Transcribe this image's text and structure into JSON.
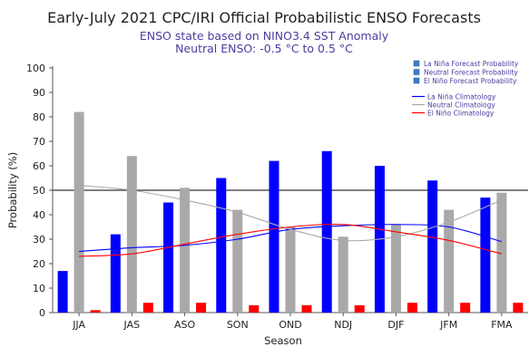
{
  "title": "Early-July 2021 CPC/IRI Official Probabilistic ENSO Forecasts",
  "subtitle_1": "ENSO state based on NINO3.4 SST Anomaly",
  "subtitle_2": "Neutral ENSO: -0.5 °C to 0.5 °C",
  "chart_data": {
    "type": "bar",
    "title": "Early-July 2021 CPC/IRI Official Probabilistic ENSO Forecasts",
    "xlabel": "Season",
    "ylabel": "Probability (%)",
    "ylim": [
      0,
      100
    ],
    "yticks": [
      0,
      10,
      20,
      30,
      40,
      50,
      60,
      70,
      80,
      90,
      100
    ],
    "reference_line": 50,
    "categories": [
      "JJA",
      "JAS",
      "ASO",
      "SON",
      "OND",
      "NDJ",
      "DJF",
      "JFM",
      "FMA"
    ],
    "series": [
      {
        "name": "La Niña Forecast Probability",
        "kind": "bar",
        "color": "#0000ff",
        "values": [
          17,
          32,
          45,
          55,
          62,
          66,
          60,
          54,
          47
        ]
      },
      {
        "name": "Neutral Forecast Probability",
        "kind": "bar",
        "color": "#a9a9a9",
        "values": [
          82,
          64,
          51,
          42,
          35,
          31,
          36,
          42,
          49
        ]
      },
      {
        "name": "El Niño Forecast Probability",
        "kind": "bar",
        "color": "#ff0000",
        "values": [
          1,
          4,
          4,
          3,
          3,
          3,
          4,
          4,
          4
        ]
      },
      {
        "name": "La Niña Climatology",
        "kind": "line",
        "color": "#0000ff",
        "values": [
          25,
          26.5,
          27.5,
          30,
          34,
          35.5,
          36,
          35,
          29
        ]
      },
      {
        "name": "Neutral Climatology",
        "kind": "line",
        "color": "#a9a9a9",
        "values": [
          52,
          50,
          46,
          41,
          34,
          29.5,
          31,
          37,
          46
        ]
      },
      {
        "name": "El Niño Climatology",
        "kind": "line",
        "color": "#ff0000",
        "values": [
          23,
          24,
          28,
          32,
          35,
          36,
          33,
          29.5,
          24
        ]
      }
    ],
    "legend_position": "top-right",
    "grid": false
  }
}
